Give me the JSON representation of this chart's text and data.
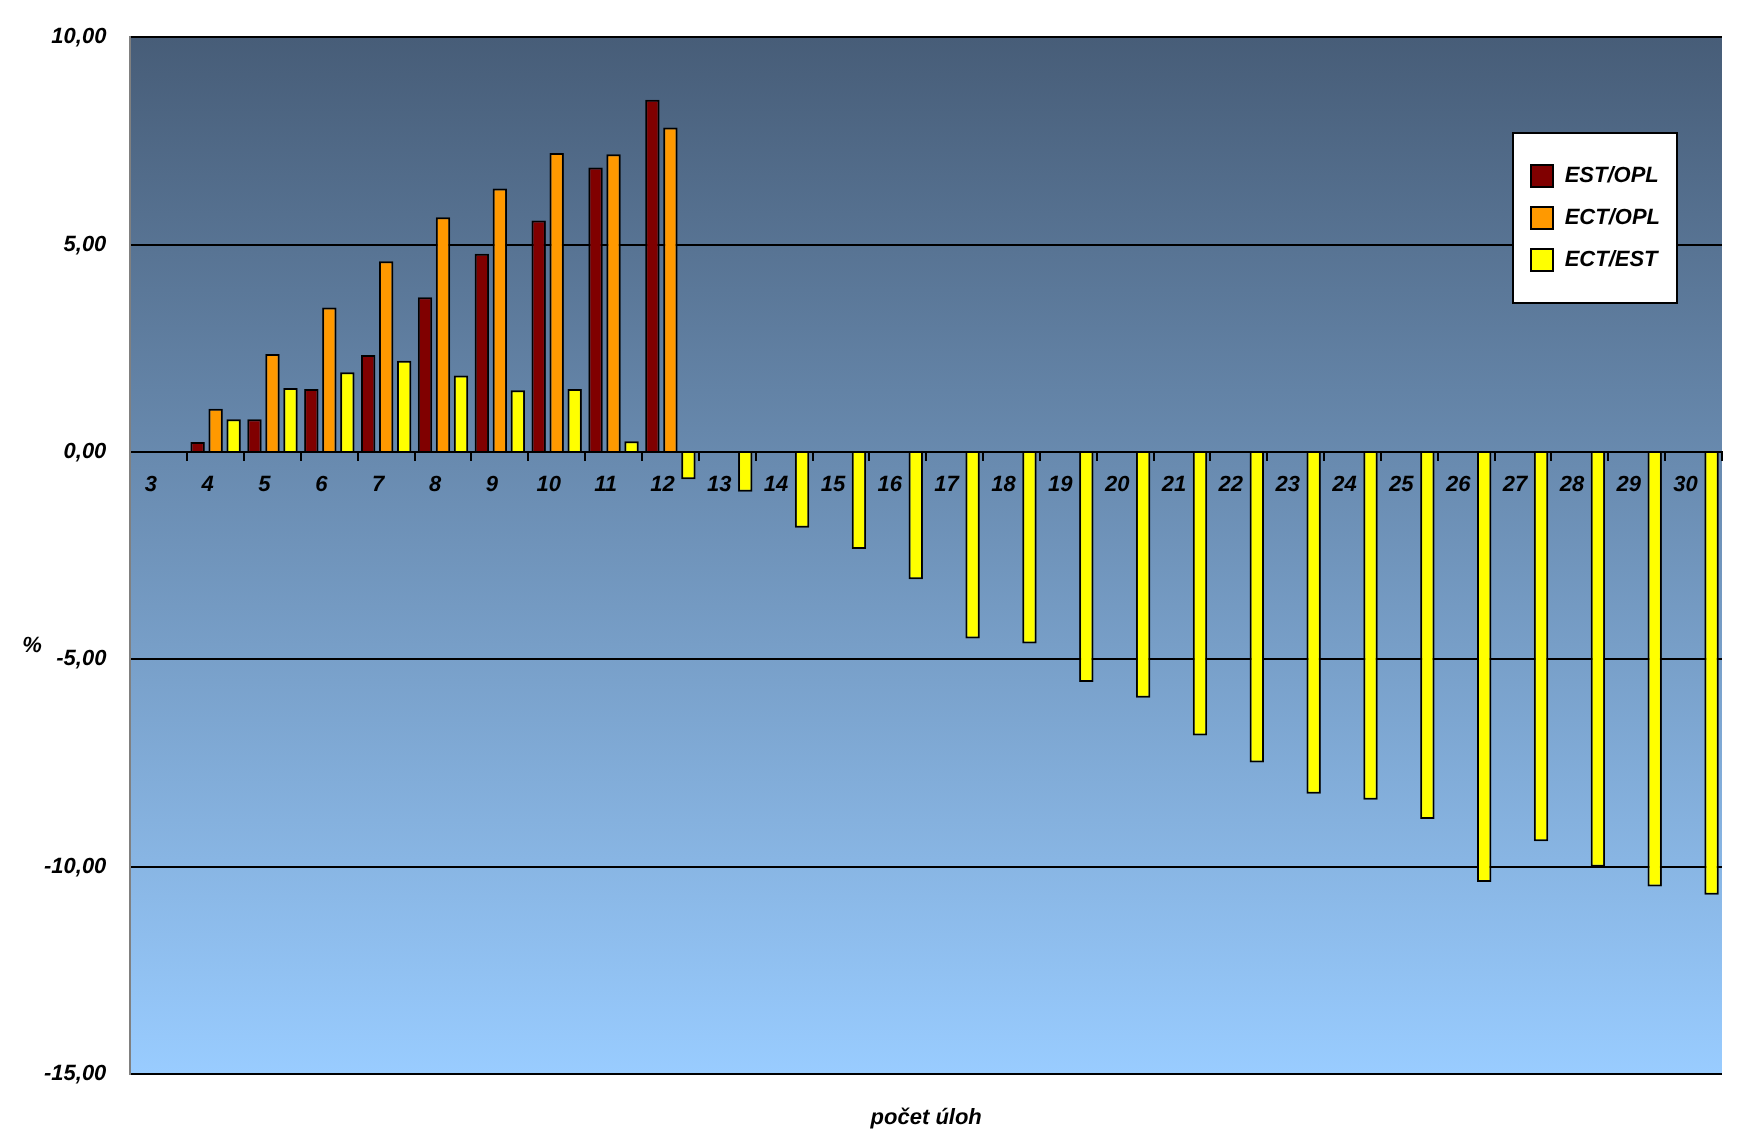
{
  "chart_data": {
    "type": "bar",
    "xlabel": "počet úloh",
    "ylabel": "%",
    "categories": [
      "3",
      "4",
      "5",
      "6",
      "7",
      "8",
      "9",
      "10",
      "11",
      "12",
      "13",
      "14",
      "15",
      "16",
      "17",
      "18",
      "19",
      "20",
      "21",
      "22",
      "23",
      "24",
      "25",
      "26",
      "27",
      "28",
      "29",
      "30"
    ],
    "series": [
      {
        "name": "EST/OPL",
        "color": "#800000",
        "values": [
          null,
          0.24,
          0.79,
          1.52,
          2.34,
          3.73,
          4.78,
          5.58,
          6.86,
          8.49,
          null,
          null,
          null,
          null,
          null,
          null,
          null,
          null,
          null,
          null,
          null,
          null,
          null,
          null,
          null,
          null,
          null,
          null
        ]
      },
      {
        "name": "ECT/OPL",
        "color": "#ff9900",
        "values": [
          null,
          1.04,
          2.36,
          3.48,
          4.6,
          5.66,
          6.35,
          7.21,
          7.18,
          7.82,
          null,
          null,
          null,
          null,
          null,
          null,
          null,
          null,
          null,
          null,
          null,
          null,
          null,
          null,
          null,
          null,
          null,
          null
        ]
      },
      {
        "name": "ECT/EST",
        "color": "#ffff00",
        "values": [
          null,
          0.79,
          1.54,
          1.92,
          2.2,
          1.84,
          1.49,
          1.52,
          0.26,
          -0.66,
          -0.96,
          -1.83,
          -2.34,
          -3.07,
          -4.5,
          -4.62,
          -5.55,
          -5.93,
          -6.84,
          -7.49,
          -8.24,
          -8.39,
          -8.85,
          -10.37,
          -9.39,
          -10.0,
          -10.48,
          -10.68
        ]
      }
    ],
    "ylim": [
      -15,
      10
    ],
    "yticks": [
      {
        "value": -15,
        "label": "-15,00"
      },
      {
        "value": -10,
        "label": "-10,00"
      },
      {
        "value": -5,
        "label": "-5,00"
      },
      {
        "value": 0,
        "label": "0,00"
      },
      {
        "value": 5,
        "label": "5,00"
      },
      {
        "value": 10,
        "label": "10,00"
      }
    ],
    "grid": "y",
    "legend": "top right"
  }
}
